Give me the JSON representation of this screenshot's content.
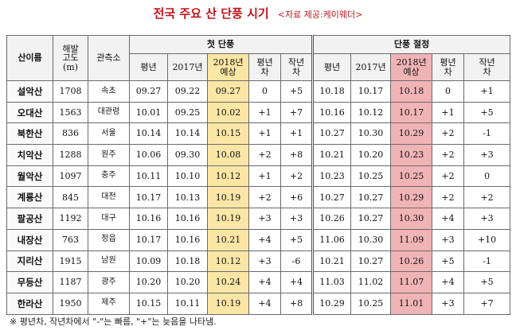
{
  "title": "전국 주요 산 단풍 시기",
  "source": "<자료 제공:케이웨더>",
  "headers": {
    "mountain": "산이름",
    "altitude": "해발\n고도\n(m)",
    "station": "관측소",
    "first_group": "첫 단풍",
    "peak_group": "단풍 절정",
    "avg": "평년",
    "y2017": "2017년",
    "y2018": "2018년\n예상",
    "diff_avg": "평년\n차",
    "diff_last": "작년\n차"
  },
  "rows": [
    {
      "name": "설악산",
      "alt": "1708",
      "obs": "속초",
      "f_avg": "09.27",
      "f_2017": "09.22",
      "f_2018": "09.27",
      "f_da": "0",
      "f_dl": "+5",
      "p_avg": "10.18",
      "p_2017": "10.17",
      "p_2018": "10.18",
      "p_da": "0",
      "p_dl": "+1"
    },
    {
      "name": "오대산",
      "alt": "1563",
      "obs": "대관령",
      "f_avg": "10.01",
      "f_2017": "09.25",
      "f_2018": "10.02",
      "f_da": "+1",
      "f_dl": "+7",
      "p_avg": "10.16",
      "p_2017": "10.12",
      "p_2018": "10.17",
      "p_da": "+1",
      "p_dl": "+5"
    },
    {
      "name": "북한산",
      "alt": "836",
      "obs": "서울",
      "f_avg": "10.14",
      "f_2017": "10.14",
      "f_2018": "10.15",
      "f_da": "+1",
      "f_dl": "+1",
      "p_avg": "10.27",
      "p_2017": "10.30",
      "p_2018": "10.29",
      "p_da": "+2",
      "p_dl": "-1"
    },
    {
      "name": "치악산",
      "alt": "1288",
      "obs": "원주",
      "f_avg": "10.06",
      "f_2017": "09.30",
      "f_2018": "10.08",
      "f_da": "+2",
      "f_dl": "+8",
      "p_avg": "10.21",
      "p_2017": "10.20",
      "p_2018": "10.23",
      "p_da": "+2",
      "p_dl": "+3"
    },
    {
      "name": "월악산",
      "alt": "1097",
      "obs": "충주",
      "f_avg": "10.11",
      "f_2017": "10.10",
      "f_2018": "10.12",
      "f_da": "+1",
      "f_dl": "+2",
      "p_avg": "10.23",
      "p_2017": "10.25",
      "p_2018": "10.25",
      "p_da": "+2",
      "p_dl": "0"
    },
    {
      "name": "계룡산",
      "alt": "845",
      "obs": "대전",
      "f_avg": "10.17",
      "f_2017": "10.13",
      "f_2018": "10.19",
      "f_da": "+2",
      "f_dl": "+6",
      "p_avg": "10.27",
      "p_2017": "10.27",
      "p_2018": "10.29",
      "p_da": "+2",
      "p_dl": "+2"
    },
    {
      "name": "팔공산",
      "alt": "1192",
      "obs": "대구",
      "f_avg": "10.16",
      "f_2017": "10.16",
      "f_2018": "10.19",
      "f_da": "+3",
      "f_dl": "+3",
      "p_avg": "10.26",
      "p_2017": "10.27",
      "p_2018": "10.30",
      "p_da": "+4",
      "p_dl": "+3"
    },
    {
      "name": "내장산",
      "alt": "763",
      "obs": "정읍",
      "f_avg": "10.17",
      "f_2017": "10.16",
      "f_2018": "10.21",
      "f_da": "+4",
      "f_dl": "+5",
      "p_avg": "11.06",
      "p_2017": "10.30",
      "p_2018": "11.09",
      "p_da": "+3",
      "p_dl": "+10"
    },
    {
      "name": "지리산",
      "alt": "1915",
      "obs": "남원",
      "f_avg": "10.09",
      "f_2017": "10.18",
      "f_2018": "10.12",
      "f_da": "+3",
      "f_dl": "-6",
      "p_avg": "10.21",
      "p_2017": "10.27",
      "p_2018": "10.26",
      "p_da": "+5",
      "p_dl": "-1"
    },
    {
      "name": "무등산",
      "alt": "1187",
      "obs": "광주",
      "f_avg": "10.20",
      "f_2017": "10.20",
      "f_2018": "10.24",
      "f_da": "+4",
      "f_dl": "+4",
      "p_avg": "11.03",
      "p_2017": "11.02",
      "p_2018": "11.07",
      "p_da": "+4",
      "p_dl": "+5"
    },
    {
      "name": "한라산",
      "alt": "1950",
      "obs": "제주",
      "f_avg": "10.15",
      "f_2017": "10.11",
      "f_2018": "10.19",
      "f_da": "+4",
      "f_dl": "+8",
      "p_avg": "10.29",
      "p_2017": "10.25",
      "p_2018": "11.01",
      "p_da": "+3",
      "p_dl": "+7"
    }
  ],
  "note": "※ 평년차, 작년차에서 \"-\"는 빠름, \"+\"는 늦음을 나타냄.",
  "colors": {
    "title": "#c0141b",
    "highlight_first": "#fbe6a6",
    "highlight_peak": "#f1b4b6"
  }
}
